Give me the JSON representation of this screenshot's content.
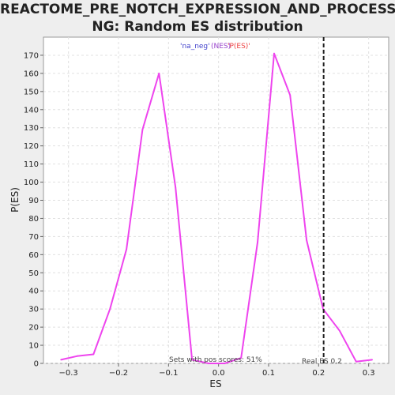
{
  "chart_data": {
    "type": "line",
    "title_line1": "REACTOME_PRE_NOTCH_EXPRESSION_AND_PROCESSI",
    "title_line2": "NG: Random ES distribution",
    "xlabel": "ES",
    "ylabel": "P(ES)",
    "xlim": [
      -0.35,
      0.34
    ],
    "ylim": [
      0,
      180
    ],
    "xticks": [
      -0.3,
      -0.2,
      -0.1,
      0.0,
      0.1,
      0.2,
      0.3
    ],
    "xtick_labels": [
      "−0.3",
      "−0.2",
      "−0.1",
      "0.0",
      "0.1",
      "0.2",
      "0.3"
    ],
    "yticks": [
      0,
      10,
      20,
      30,
      40,
      50,
      60,
      70,
      80,
      90,
      100,
      110,
      120,
      130,
      140,
      150,
      160,
      170
    ],
    "grid": true,
    "series_color": "#ee44ee",
    "series": [
      {
        "x": [
          -0.315,
          -0.283,
          -0.25,
          -0.217,
          -0.184,
          -0.152,
          -0.119,
          -0.086,
          -0.053,
          -0.02,
          0.012,
          0.045,
          0.078,
          0.111,
          0.143,
          0.176,
          0.209,
          0.242,
          0.275,
          0.307
        ],
        "y": [
          2,
          4,
          5,
          30,
          63,
          129,
          160,
          97,
          2,
          0,
          0,
          3,
          67,
          171,
          148,
          68,
          30,
          18,
          1,
          2
        ]
      }
    ],
    "real_es": 0.21,
    "real_es_label": "Real ES 0.2",
    "pos_scores_text": "Sets with pos scores: 51%",
    "legend_text_blue": "'na_neg'",
    "legend_text_purple": "(NES)",
    "legend_text_red": "'P(ES)'"
  }
}
